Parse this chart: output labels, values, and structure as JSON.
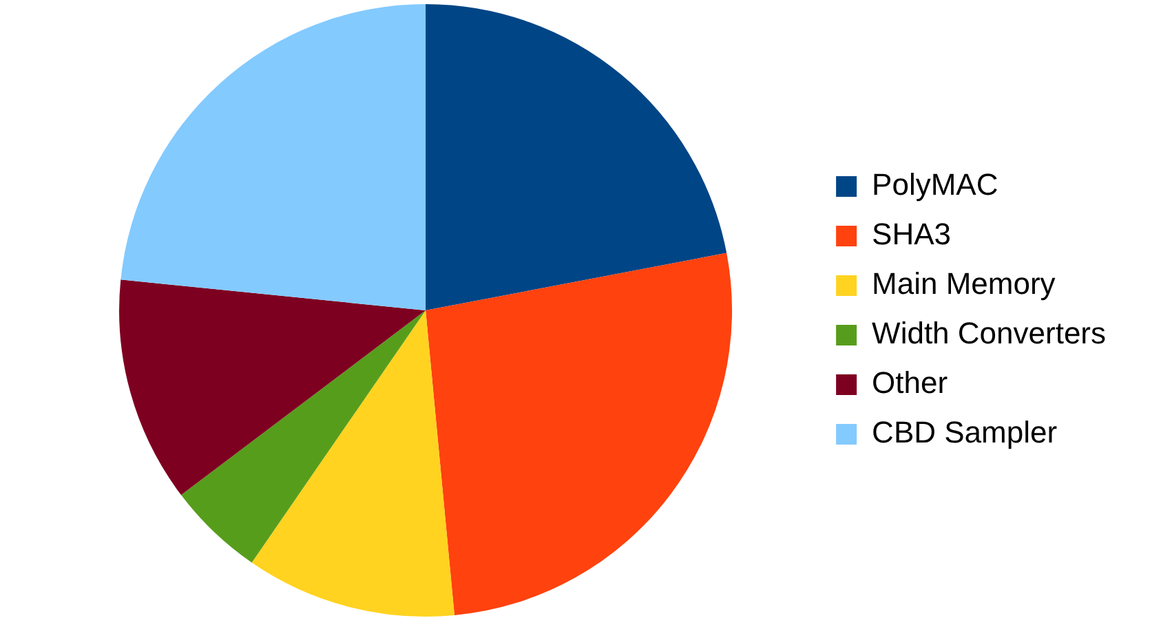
{
  "chart_data": {
    "type": "pie",
    "categories": [
      "PolyMAC",
      "SHA3",
      "Main Memory",
      "Width Converters",
      "Other",
      "CBD Sampler"
    ],
    "values": [
      22.0,
      26.5,
      11.1,
      5.1,
      11.9,
      23.4
    ],
    "colors": [
      "#004586",
      "#ff420e",
      "#ffd320",
      "#579d1c",
      "#7e0021",
      "#83caff"
    ],
    "legend": "right"
  }
}
